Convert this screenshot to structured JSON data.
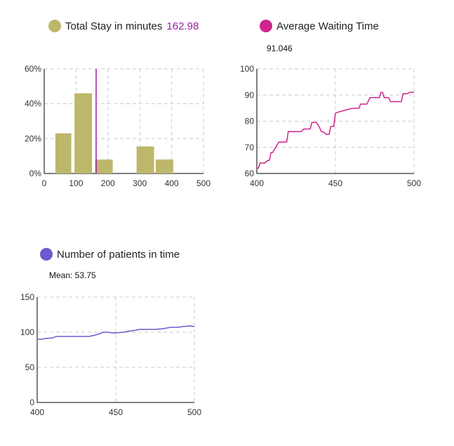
{
  "colors": {
    "hist": "#bdb76b",
    "meanLine": "#9b1fa0",
    "wait": "#d0248f",
    "patients": "#6a5acd",
    "grid": "#cccccc",
    "axis": "#000000"
  },
  "chart_data": [
    {
      "type": "bar",
      "legend": "Total Stay in minutes",
      "value_label": "162.98",
      "mean": 162.98,
      "bins": [
        {
          "x0": 35,
          "x1": 85,
          "value": 0.23
        },
        {
          "x0": 95,
          "x1": 150,
          "value": 0.46
        },
        {
          "x0": 160,
          "x1": 215,
          "value": 0.08
        },
        {
          "x0": 290,
          "x1": 345,
          "value": 0.155
        },
        {
          "x0": 350,
          "x1": 405,
          "value": 0.08
        }
      ],
      "xlim": [
        0,
        500
      ],
      "ylim": [
        0,
        0.6
      ],
      "xticks": [
        "0",
        "100",
        "200",
        "300",
        "400",
        "500"
      ],
      "yticks": [
        "0%",
        "20%",
        "40%",
        "60%"
      ],
      "grid": true
    },
    {
      "type": "line",
      "legend": "Average Waiting Time",
      "subtitle": "91.046",
      "xlim": [
        400,
        500
      ],
      "ylim": [
        60,
        100
      ],
      "xticks": [
        "400",
        "450",
        "500"
      ],
      "yticks": [
        "60",
        "70",
        "80",
        "90",
        "100"
      ],
      "x": [
        400,
        401,
        402,
        404,
        405,
        407,
        408,
        409,
        410,
        412,
        414,
        418,
        419,
        420,
        422,
        425,
        428,
        430,
        432,
        433,
        434,
        435,
        437,
        438,
        440,
        441,
        442,
        444,
        445,
        446,
        447,
        448,
        449,
        450,
        452,
        455,
        458,
        460,
        465,
        466,
        468,
        470,
        472,
        473,
        474,
        475,
        477,
        478,
        479,
        480,
        481,
        482,
        484,
        485,
        486,
        487,
        488,
        490,
        491,
        492,
        493,
        494,
        496,
        497,
        499,
        500
      ],
      "y": [
        62,
        62,
        64,
        64,
        64,
        65,
        65,
        68,
        68,
        70,
        72,
        72,
        72,
        76,
        76,
        76,
        76,
        77,
        77,
        77,
        77,
        79.5,
        79.5,
        79.5,
        77.5,
        76,
        76,
        75,
        75,
        75,
        78,
        78,
        78,
        83,
        83.5,
        84,
        84.5,
        84.8,
        85,
        86.5,
        86.5,
        86.5,
        89,
        89,
        89,
        89,
        89,
        89,
        91,
        91,
        89,
        89,
        89,
        87.5,
        87.5,
        87.5,
        87.5,
        87.5,
        87.5,
        87.5,
        90.5,
        90.5,
        90.5,
        91,
        91,
        91
      ]
    },
    {
      "type": "line",
      "legend": "Number of patients in time",
      "subtitle": "Mean: 53.75",
      "xlim": [
        400,
        500
      ],
      "ylim": [
        0,
        150
      ],
      "xticks": [
        "400",
        "450",
        "500"
      ],
      "yticks": [
        "0",
        "50",
        "100",
        "150"
      ],
      "x": [
        400,
        403,
        405,
        410,
        412,
        420,
        430,
        433,
        435,
        437,
        440,
        442,
        445,
        448,
        450,
        452,
        455,
        457,
        460,
        463,
        465,
        470,
        475,
        480,
        485,
        490,
        492,
        495,
        497,
        500
      ],
      "y": [
        90,
        90,
        91,
        92,
        94,
        94,
        94,
        94,
        95,
        96,
        98,
        100,
        100,
        99,
        99,
        99.5,
        100,
        101,
        102,
        103,
        104,
        104,
        104,
        105,
        107,
        107,
        108,
        108.5,
        109,
        108
      ]
    }
  ]
}
